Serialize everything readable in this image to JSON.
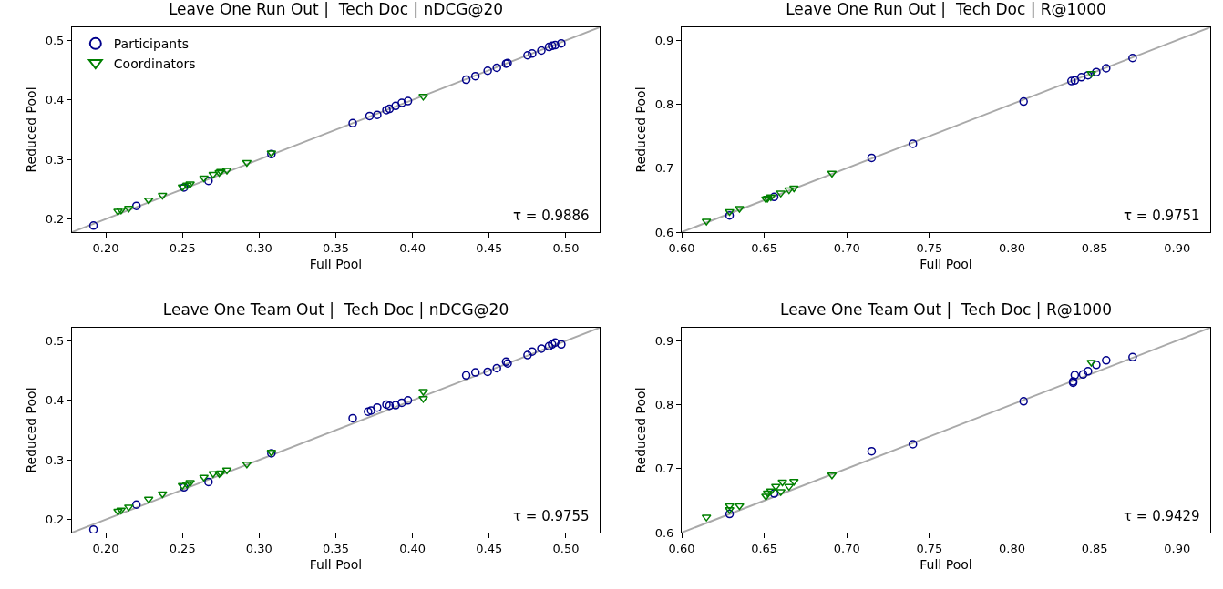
{
  "chart_data": [
    {
      "type": "scatter",
      "title": "Leave One Run Out |  Tech Doc | nDCG@20",
      "xlabel": "Full Pool",
      "ylabel": "Reduced Pool",
      "annotations": [
        "τ = 0.9886"
      ],
      "grid": false,
      "legend": "top left",
      "xlim": [
        0.178,
        0.522
      ],
      "ylim": [
        0.178,
        0.522
      ],
      "xticks": [
        {
          "value": 0.2,
          "label": "0.20"
        },
        {
          "value": 0.25,
          "label": "0.25"
        },
        {
          "value": 0.3,
          "label": "0.30"
        },
        {
          "value": 0.35,
          "label": "0.35"
        },
        {
          "value": 0.4,
          "label": "0.40"
        },
        {
          "value": 0.45,
          "label": "0.45"
        },
        {
          "value": 0.5,
          "label": "0.50"
        }
      ],
      "yticks": [
        0.2,
        0.3,
        0.4,
        0.5
      ],
      "series": [
        {
          "type": "line",
          "color": "#a9a9a9",
          "marker": "none",
          "x": [
            0.178,
            0.522
          ],
          "values": [
            0.178,
            0.522
          ]
        },
        {
          "name": "Participants",
          "color": "#00008b",
          "marker": "circle",
          "x": [
            0.192,
            0.22,
            0.251,
            0.267,
            0.308,
            0.361,
            0.372,
            0.377,
            0.383,
            0.385,
            0.389,
            0.393,
            0.397,
            0.435,
            0.441,
            0.449,
            0.455,
            0.461,
            0.462,
            0.475,
            0.478,
            0.484,
            0.489,
            0.491,
            0.493,
            0.497
          ],
          "values": [
            0.189,
            0.222,
            0.253,
            0.264,
            0.309,
            0.361,
            0.373,
            0.375,
            0.383,
            0.385,
            0.39,
            0.395,
            0.398,
            0.434,
            0.44,
            0.449,
            0.454,
            0.461,
            0.462,
            0.475,
            0.478,
            0.483,
            0.489,
            0.491,
            0.492,
            0.495
          ]
        },
        {
          "name": "Coordinators",
          "color": "#008000",
          "marker": "triangle",
          "x": [
            0.208,
            0.21,
            0.215,
            0.228,
            0.237,
            0.25,
            0.253,
            0.255,
            0.264,
            0.27,
            0.274,
            0.275,
            0.279,
            0.292,
            0.308,
            0.407
          ],
          "values": [
            0.213,
            0.215,
            0.218,
            0.232,
            0.24,
            0.254,
            0.257,
            0.259,
            0.269,
            0.275,
            0.278,
            0.28,
            0.282,
            0.295,
            0.311,
            0.406
          ]
        }
      ]
    },
    {
      "type": "scatter",
      "title": "Leave One Run Out |  Tech Doc | R@1000",
      "xlabel": "Full Pool",
      "ylabel": "Reduced Pool",
      "annotations": [
        "τ = 0.9751"
      ],
      "grid": false,
      "xlim": [
        0.6,
        0.92
      ],
      "ylim": [
        0.6,
        0.92
      ],
      "xticks": [
        {
          "value": 0.6,
          "label": "0.60"
        },
        {
          "value": 0.65,
          "label": "0.65"
        },
        {
          "value": 0.7,
          "label": "0.70"
        },
        {
          "value": 0.75,
          "label": "0.75"
        },
        {
          "value": 0.8,
          "label": "0.80"
        },
        {
          "value": 0.85,
          "label": "0.85"
        },
        {
          "value": 0.9,
          "label": "0.90"
        }
      ],
      "yticks": [
        0.6,
        0.7,
        0.8,
        0.9
      ],
      "series": [
        {
          "type": "line",
          "color": "#a9a9a9",
          "marker": "none",
          "x": [
            0.6,
            0.92
          ],
          "values": [
            0.6,
            0.92
          ]
        },
        {
          "color": "#00008b",
          "marker": "circle",
          "x": [
            0.629,
            0.656,
            0.715,
            0.74,
            0.807,
            0.836,
            0.838,
            0.842,
            0.846,
            0.851,
            0.857,
            0.873
          ],
          "values": [
            0.626,
            0.655,
            0.716,
            0.738,
            0.804,
            0.836,
            0.837,
            0.842,
            0.845,
            0.85,
            0.856,
            0.872
          ]
        },
        {
          "color": "#008000",
          "marker": "triangle",
          "x": [
            0.615,
            0.629,
            0.635,
            0.651,
            0.652,
            0.654,
            0.66,
            0.665,
            0.668,
            0.691,
            0.848
          ],
          "values": [
            0.617,
            0.632,
            0.637,
            0.652,
            0.653,
            0.655,
            0.661,
            0.666,
            0.669,
            0.692,
            0.848
          ]
        }
      ]
    },
    {
      "type": "scatter",
      "title": "Leave One Team Out |  Tech Doc | nDCG@20",
      "xlabel": "Full Pool",
      "ylabel": "Reduced Pool",
      "annotations": [
        "τ = 0.9755"
      ],
      "grid": false,
      "xlim": [
        0.178,
        0.522
      ],
      "ylim": [
        0.178,
        0.522
      ],
      "xticks": [
        {
          "value": 0.2,
          "label": "0.20"
        },
        {
          "value": 0.25,
          "label": "0.25"
        },
        {
          "value": 0.3,
          "label": "0.30"
        },
        {
          "value": 0.35,
          "label": "0.35"
        },
        {
          "value": 0.4,
          "label": "0.40"
        },
        {
          "value": 0.45,
          "label": "0.45"
        },
        {
          "value": 0.5,
          "label": "0.50"
        }
      ],
      "yticks": [
        0.2,
        0.3,
        0.4,
        0.5
      ],
      "series": [
        {
          "type": "line",
          "color": "#a9a9a9",
          "marker": "none",
          "x": [
            0.178,
            0.522
          ],
          "values": [
            0.178,
            0.522
          ]
        },
        {
          "color": "#00008b",
          "marker": "circle",
          "x": [
            0.192,
            0.22,
            0.251,
            0.267,
            0.308,
            0.361,
            0.371,
            0.373,
            0.377,
            0.383,
            0.385,
            0.389,
            0.393,
            0.397,
            0.435,
            0.441,
            0.449,
            0.455,
            0.461,
            0.462,
            0.475,
            0.478,
            0.484,
            0.489,
            0.491,
            0.493,
            0.497
          ],
          "values": [
            0.183,
            0.225,
            0.254,
            0.263,
            0.311,
            0.37,
            0.381,
            0.383,
            0.388,
            0.393,
            0.391,
            0.392,
            0.396,
            0.4,
            0.442,
            0.447,
            0.448,
            0.454,
            0.465,
            0.462,
            0.476,
            0.482,
            0.487,
            0.491,
            0.494,
            0.497,
            0.494
          ]
        },
        {
          "color": "#008000",
          "marker": "triangle",
          "x": [
            0.208,
            0.21,
            0.215,
            0.228,
            0.237,
            0.25,
            0.253,
            0.255,
            0.264,
            0.27,
            0.274,
            0.275,
            0.279,
            0.292,
            0.308,
            0.407,
            0.407
          ],
          "values": [
            0.214,
            0.216,
            0.221,
            0.234,
            0.243,
            0.257,
            0.259,
            0.262,
            0.271,
            0.277,
            0.277,
            0.278,
            0.283,
            0.293,
            0.313,
            0.415,
            0.403
          ]
        }
      ]
    },
    {
      "type": "scatter",
      "title": "Leave One Team Out |  Tech Doc | R@1000",
      "xlabel": "Full Pool",
      "ylabel": "Reduced Pool",
      "annotations": [
        "τ = 0.9429"
      ],
      "grid": false,
      "xlim": [
        0.6,
        0.92
      ],
      "ylim": [
        0.6,
        0.92
      ],
      "xticks": [
        {
          "value": 0.6,
          "label": "0.60"
        },
        {
          "value": 0.65,
          "label": "0.65"
        },
        {
          "value": 0.7,
          "label": "0.70"
        },
        {
          "value": 0.75,
          "label": "0.75"
        },
        {
          "value": 0.8,
          "label": "0.80"
        },
        {
          "value": 0.85,
          "label": "0.85"
        },
        {
          "value": 0.9,
          "label": "0.90"
        }
      ],
      "yticks": [
        0.6,
        0.7,
        0.8,
        0.9
      ],
      "series": [
        {
          "type": "line",
          "color": "#a9a9a9",
          "marker": "none",
          "x": [
            0.6,
            0.92
          ],
          "values": [
            0.6,
            0.92
          ]
        },
        {
          "color": "#00008b",
          "marker": "circle",
          "x": [
            0.629,
            0.656,
            0.715,
            0.74,
            0.807,
            0.837,
            0.837,
            0.838,
            0.843,
            0.846,
            0.851,
            0.857,
            0.873
          ],
          "values": [
            0.629,
            0.661,
            0.727,
            0.738,
            0.805,
            0.834,
            0.836,
            0.846,
            0.847,
            0.852,
            0.862,
            0.869,
            0.874
          ]
        },
        {
          "color": "#008000",
          "marker": "triangle",
          "x": [
            0.615,
            0.629,
            0.629,
            0.635,
            0.651,
            0.652,
            0.654,
            0.657,
            0.66,
            0.661,
            0.665,
            0.668,
            0.691,
            0.848
          ],
          "values": [
            0.624,
            0.642,
            0.636,
            0.642,
            0.657,
            0.662,
            0.665,
            0.672,
            0.664,
            0.679,
            0.672,
            0.68,
            0.69,
            0.866
          ]
        }
      ]
    }
  ]
}
